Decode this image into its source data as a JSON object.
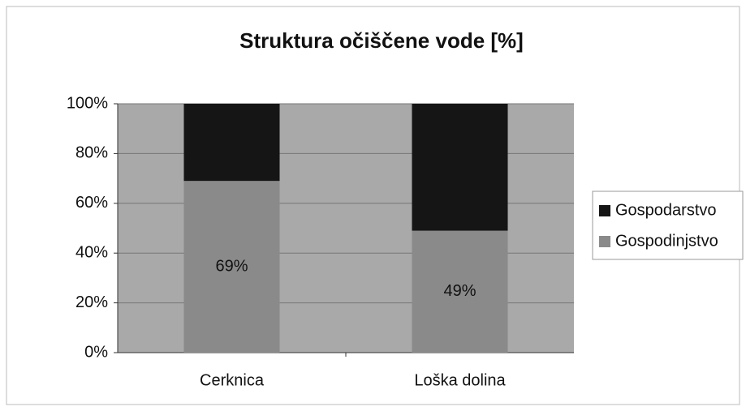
{
  "chart_data": {
    "type": "stacked_bar",
    "title": "Struktura očiščene vode [%]",
    "categories": [
      "Cerknica",
      "Loška dolina"
    ],
    "series": [
      {
        "name": "Gospodinjstvo",
        "color": "#8a8a8a",
        "values": [
          69,
          49
        ],
        "value_labels": [
          "69%",
          "49%"
        ]
      },
      {
        "name": "Gospodarstvo",
        "color": "#151515",
        "values": [
          31,
          51
        ]
      }
    ],
    "ylim": [
      0,
      100
    ],
    "yticks": [
      {
        "value": 0,
        "label": "0%"
      },
      {
        "value": 20,
        "label": "20%"
      },
      {
        "value": 40,
        "label": "40%"
      },
      {
        "value": 60,
        "label": "60%"
      },
      {
        "value": 80,
        "label": "80%"
      },
      {
        "value": 100,
        "label": "100%"
      }
    ],
    "grid": true,
    "legend": "right"
  }
}
